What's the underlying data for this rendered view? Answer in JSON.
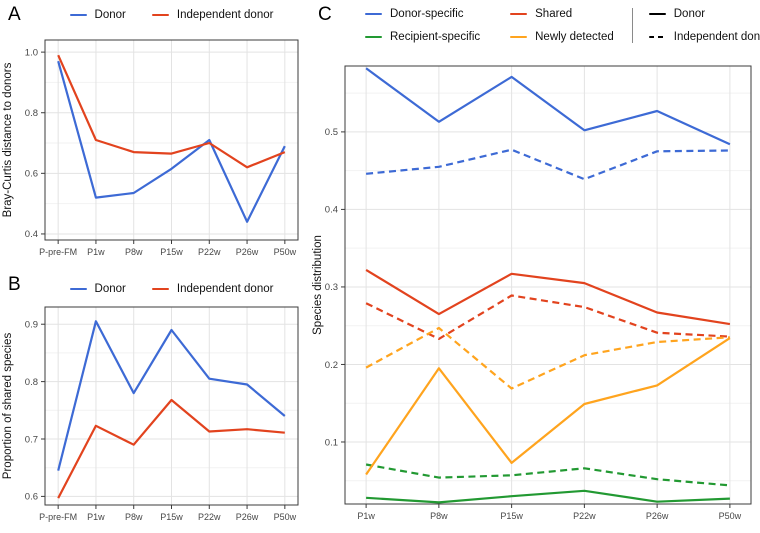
{
  "chart_data": [
    {
      "type": "line",
      "panel_label": "A",
      "title": "",
      "xlabel": "",
      "ylabel": "Bray-Curtis distance to donors",
      "categories": [
        "P-pre-FM",
        "P1w",
        "P8w",
        "P15w",
        "P22w",
        "P26w",
        "P50w"
      ],
      "ylim": [
        0.38,
        1.04
      ],
      "yticks": [
        0.4,
        0.6,
        0.8,
        1.0
      ],
      "ytick_labels": [
        "0.4",
        "0.6",
        "0.8",
        "1.0"
      ],
      "grid": true,
      "legend_position": "top",
      "legend": [
        {
          "label": "Donor",
          "color": "#3D6AD5",
          "dash": "solid"
        },
        {
          "label": "Independent donor",
          "color": "#E2431E",
          "dash": "solid"
        }
      ],
      "series": [
        {
          "name": "Donor",
          "color": "#3D6AD5",
          "dash": "solid",
          "values": [
            0.97,
            0.52,
            0.535,
            0.615,
            0.71,
            0.44,
            0.69
          ]
        },
        {
          "name": "Independent donor",
          "color": "#E2431E",
          "dash": "solid",
          "values": [
            0.99,
            0.71,
            0.67,
            0.665,
            0.7,
            0.62,
            0.67
          ]
        }
      ]
    },
    {
      "type": "line",
      "panel_label": "B",
      "title": "",
      "xlabel": "",
      "ylabel": "Proportion of shared species",
      "categories": [
        "P-pre-FM",
        "P1w",
        "P8w",
        "P15w",
        "P22w",
        "P26w",
        "P50w"
      ],
      "ylim": [
        0.585,
        0.93
      ],
      "yticks": [
        0.6,
        0.7,
        0.8,
        0.9
      ],
      "ytick_labels": [
        "0.6",
        "0.7",
        "0.8",
        "0.9"
      ],
      "grid": true,
      "legend_position": "top",
      "legend": [
        {
          "label": "Donor",
          "color": "#3D6AD5",
          "dash": "solid"
        },
        {
          "label": "Independent donor",
          "color": "#E2431E",
          "dash": "solid"
        }
      ],
      "series": [
        {
          "name": "Donor",
          "color": "#3D6AD5",
          "dash": "solid",
          "values": [
            0.645,
            0.905,
            0.78,
            0.89,
            0.805,
            0.795,
            0.74
          ]
        },
        {
          "name": "Independent donor",
          "color": "#E2431E",
          "dash": "solid",
          "values": [
            0.597,
            0.723,
            0.69,
            0.768,
            0.713,
            0.717,
            0.711
          ]
        }
      ]
    },
    {
      "type": "line",
      "panel_label": "C",
      "title": "",
      "xlabel": "",
      "ylabel": "Species distribution",
      "categories": [
        "P1w",
        "P8w",
        "P15w",
        "P22w",
        "P26w",
        "P50w"
      ],
      "ylim": [
        0.02,
        0.585
      ],
      "yticks": [
        0.1,
        0.2,
        0.3,
        0.4,
        0.5
      ],
      "ytick_labels": [
        "0.1",
        "0.2",
        "0.3",
        "0.4",
        "0.5"
      ],
      "grid": true,
      "legend_position": "top",
      "color_legend": [
        {
          "label": "Donor-specific",
          "color": "#3D6AD5"
        },
        {
          "label": "Shared",
          "color": "#E2431E"
        },
        {
          "label": "Recipient-specific",
          "color": "#229932"
        },
        {
          "label": "Newly detected",
          "color": "#FFA41E"
        }
      ],
      "linetype_legend": [
        {
          "label": "Donor",
          "dash": "solid",
          "color": "#000000"
        },
        {
          "label": "Independent donor",
          "dash": "dashed",
          "color": "#000000"
        }
      ],
      "series": [
        {
          "name": "Donor-specific / Donor",
          "group": "Donor-specific",
          "linetype": "Donor",
          "color": "#3D6AD5",
          "dash": "solid",
          "values": [
            0.582,
            0.513,
            0.571,
            0.502,
            0.527,
            0.484
          ]
        },
        {
          "name": "Donor-specific / Independent donor",
          "group": "Donor-specific",
          "linetype": "Independent donor",
          "color": "#3D6AD5",
          "dash": "dashed",
          "values": [
            0.446,
            0.455,
            0.477,
            0.439,
            0.475,
            0.476
          ]
        },
        {
          "name": "Shared / Donor",
          "group": "Shared",
          "linetype": "Donor",
          "color": "#E2431E",
          "dash": "solid",
          "values": [
            0.322,
            0.265,
            0.317,
            0.305,
            0.267,
            0.252
          ]
        },
        {
          "name": "Shared / Independent donor",
          "group": "Shared",
          "linetype": "Independent donor",
          "color": "#E2431E",
          "dash": "dashed",
          "values": [
            0.279,
            0.233,
            0.289,
            0.274,
            0.241,
            0.236
          ]
        },
        {
          "name": "Recipient-specific / Donor",
          "group": "Recipient-specific",
          "linetype": "Donor",
          "color": "#229932",
          "dash": "solid",
          "values": [
            0.028,
            0.022,
            0.03,
            0.037,
            0.023,
            0.027
          ]
        },
        {
          "name": "Recipient-specific / Independent donor",
          "group": "Recipient-specific",
          "linetype": "Independent donor",
          "color": "#229932",
          "dash": "dashed",
          "values": [
            0.071,
            0.054,
            0.057,
            0.066,
            0.052,
            0.044
          ]
        },
        {
          "name": "Newly detected / Donor",
          "group": "Newly detected",
          "linetype": "Donor",
          "color": "#FFA41E",
          "dash": "solid",
          "values": [
            0.058,
            0.195,
            0.073,
            0.149,
            0.173,
            0.234
          ]
        },
        {
          "name": "Newly detected / Independent donor",
          "group": "Newly detected",
          "linetype": "Independent donor",
          "color": "#FFA41E",
          "dash": "dashed",
          "values": [
            0.196,
            0.247,
            0.169,
            0.212,
            0.229,
            0.235
          ]
        }
      ]
    }
  ],
  "style": {
    "grid_major_color": "#E3E3E3",
    "grid_minor_color": "#F2F2F2",
    "panel_border_color": "#3b3b3b",
    "tick_label_color": "#474747",
    "axis_title_color": "#111111"
  }
}
